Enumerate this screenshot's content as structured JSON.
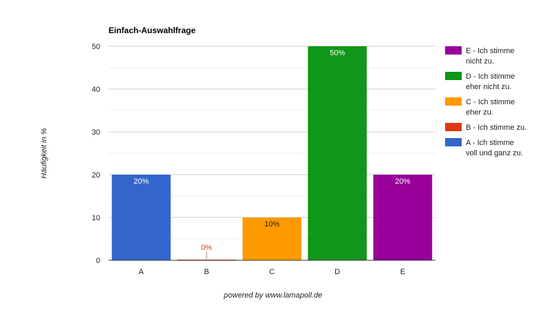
{
  "chart_data": {
    "type": "bar",
    "title": "Einfach-Auswahlfrage",
    "ylabel": "Häufigkeit in %",
    "xlabel": "",
    "ylim": [
      0,
      50
    ],
    "yticks": [
      0,
      10,
      20,
      30,
      40,
      50
    ],
    "grid": true,
    "legend_position": "right",
    "categories": [
      "A",
      "B",
      "C",
      "D",
      "E"
    ],
    "values": [
      20,
      0,
      10,
      50,
      20
    ],
    "data_labels": [
      "20%",
      "0%",
      "10%",
      "50%",
      "20%"
    ],
    "colors": [
      "#3366cc",
      "#dc3912",
      "#ff9900",
      "#109618",
      "#990099"
    ],
    "legend": [
      {
        "lines": [
          "E - Ich stimme",
          "nicht zu."
        ],
        "color": "#990099"
      },
      {
        "lines": [
          "D - Ich stimme",
          "eher nicht zu."
        ],
        "color": "#109618"
      },
      {
        "lines": [
          "C - Ich stimme",
          "eher zu."
        ],
        "color": "#ff9900"
      },
      {
        "lines": [
          "B - Ich stimme zu."
        ],
        "color": "#dc3912"
      },
      {
        "lines": [
          "A - Ich stimme",
          "voll und ganz zu."
        ],
        "color": "#3366cc"
      }
    ]
  },
  "footer": {
    "text": "powered by www.lamapoll.de"
  }
}
